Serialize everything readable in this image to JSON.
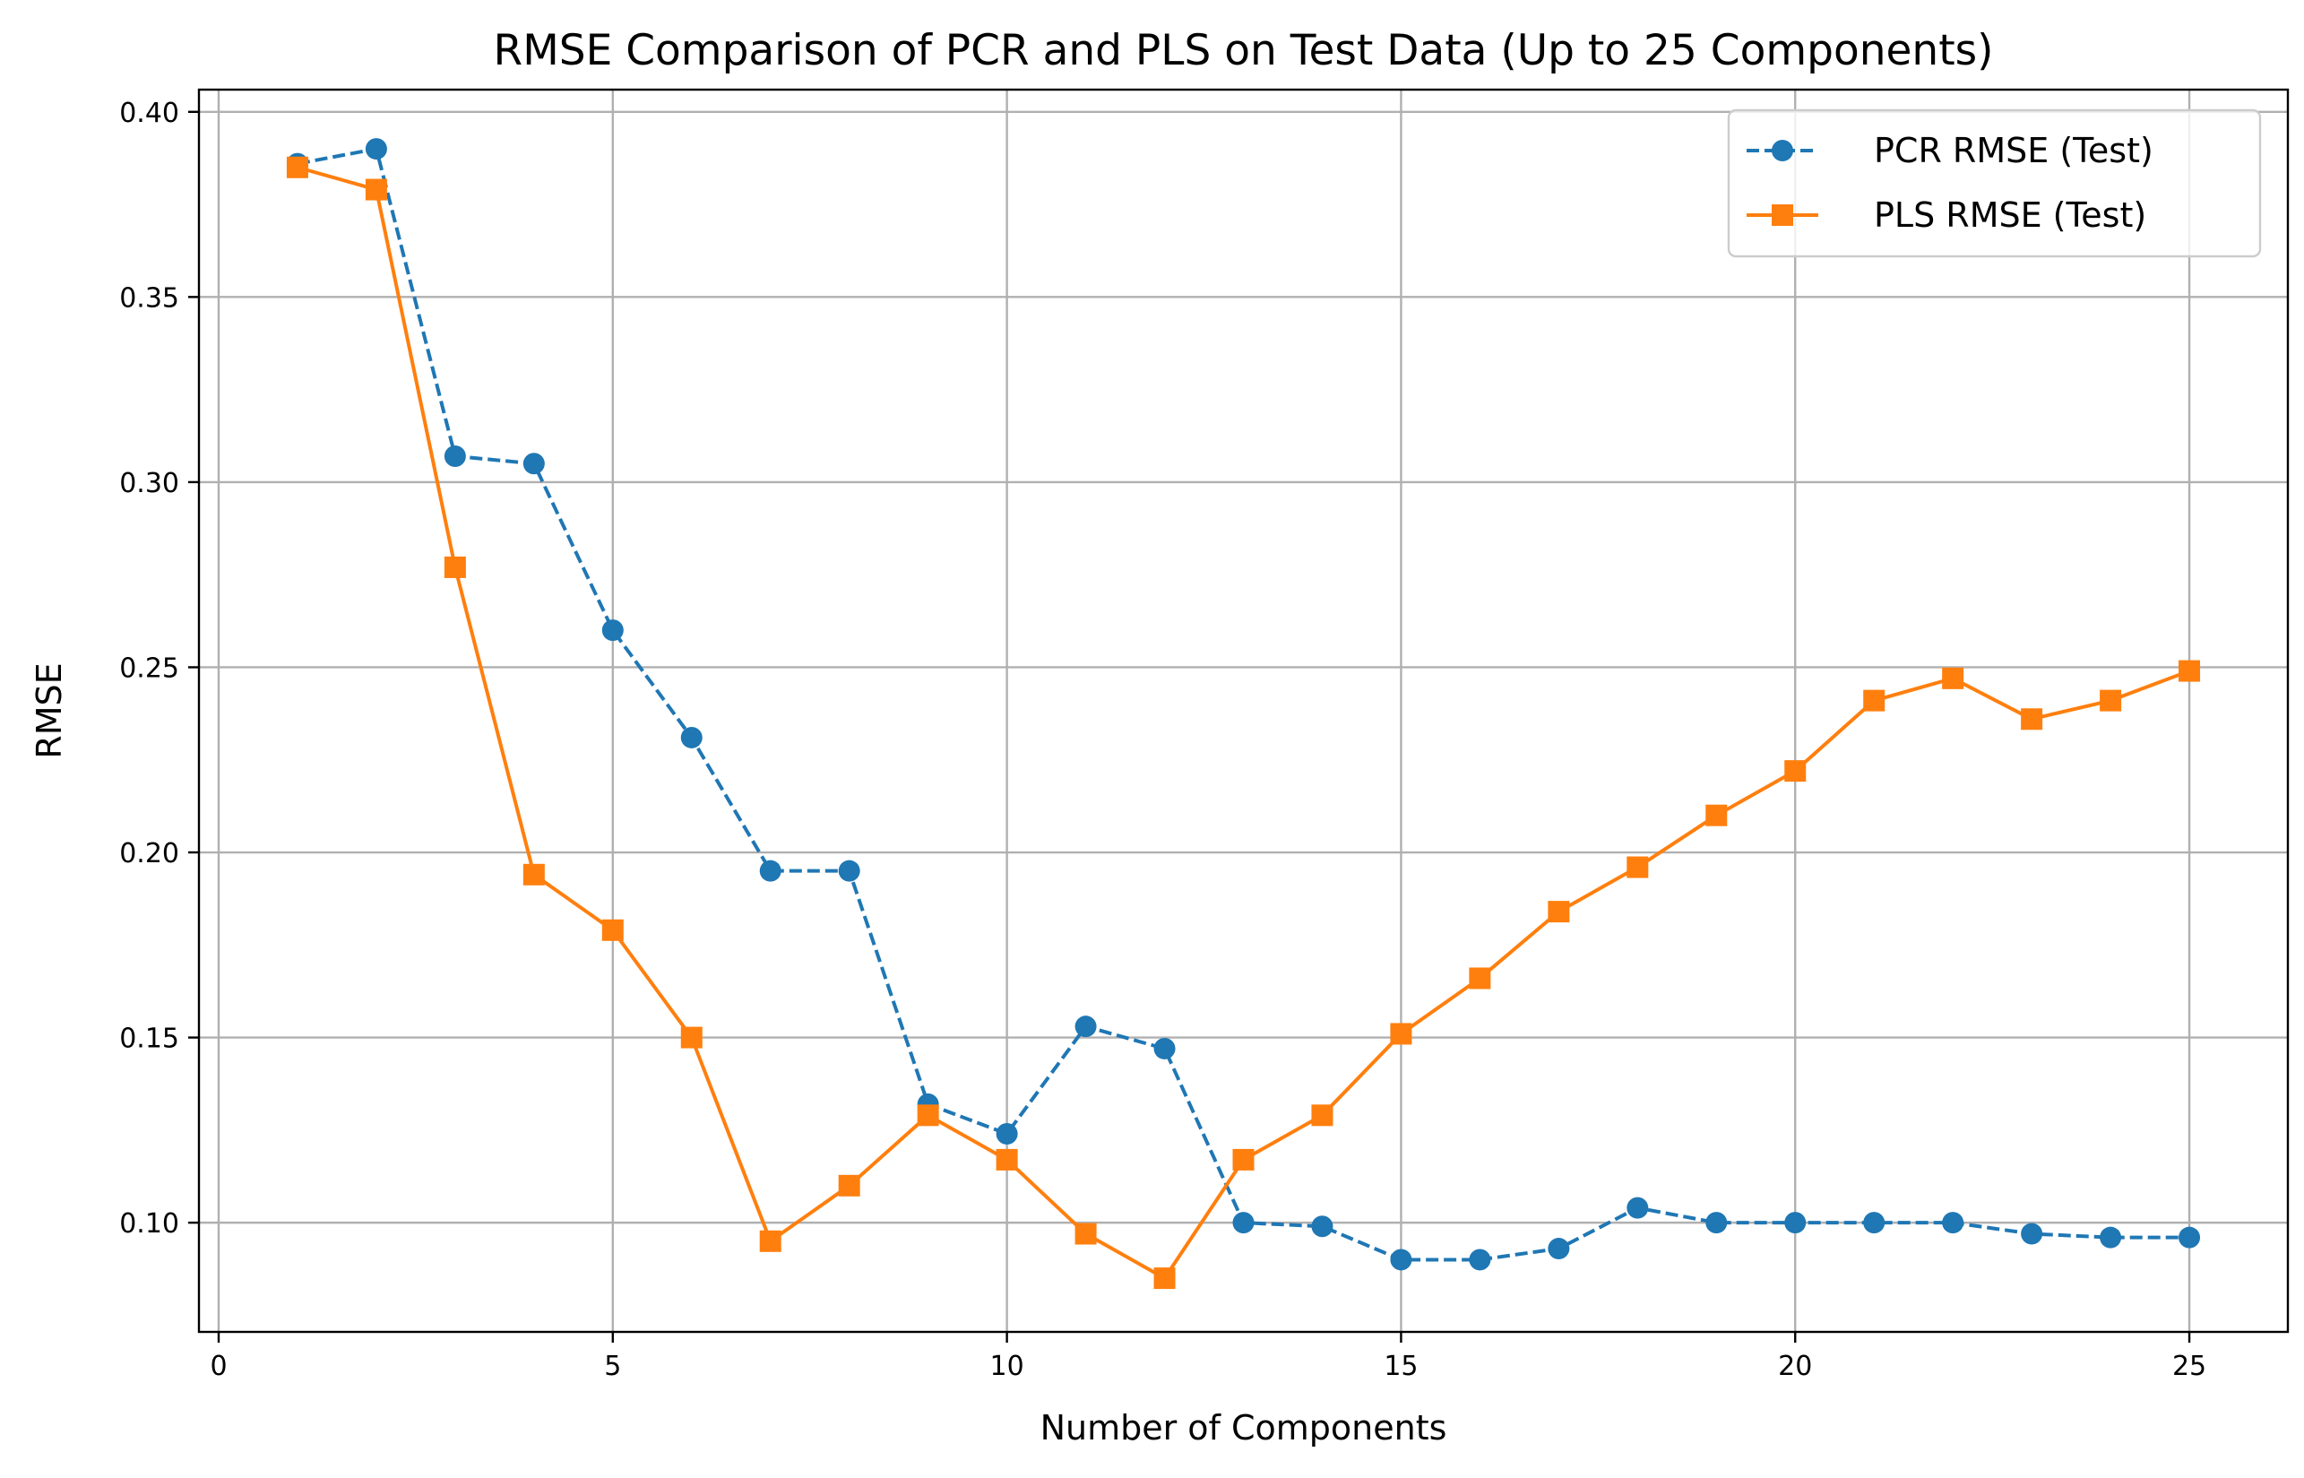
{
  "chart_data": {
    "type": "line",
    "title": "RMSE Comparison of PCR and PLS on Test Data (Up to 25 Components)",
    "xlabel": "Number of Components",
    "ylabel": "RMSE",
    "xlim": [
      -0.25,
      26.25
    ],
    "ylim": [
      0.0705,
      0.406
    ],
    "xticks": [
      0,
      5,
      10,
      15,
      20,
      25
    ],
    "xtick_labels": [
      "0",
      "5",
      "10",
      "15",
      "20",
      "25"
    ],
    "yticks": [
      0.1,
      0.15,
      0.2,
      0.25,
      0.3,
      0.35,
      0.4
    ],
    "ytick_labels": [
      "0.10",
      "0.15",
      "0.20",
      "0.25",
      "0.30",
      "0.35",
      "0.40"
    ],
    "grid": true,
    "legend_position": "top-right",
    "x": [
      1,
      2,
      3,
      4,
      5,
      6,
      7,
      8,
      9,
      10,
      11,
      12,
      13,
      14,
      15,
      16,
      17,
      18,
      19,
      20,
      21,
      22,
      23,
      24,
      25
    ],
    "series": [
      {
        "name": "PCR RMSE (Test)",
        "color": "#1f77b4",
        "line_style": "dashed",
        "marker": "circle",
        "values": [
          0.386,
          0.39,
          0.307,
          0.305,
          0.26,
          0.231,
          0.195,
          0.195,
          0.132,
          0.124,
          0.153,
          0.147,
          0.1,
          0.099,
          0.09,
          0.09,
          0.093,
          0.104,
          0.1,
          0.1,
          0.1,
          0.1,
          0.097,
          0.096,
          0.096
        ]
      },
      {
        "name": "PLS RMSE (Test)",
        "color": "#ff7f0e",
        "line_style": "solid",
        "marker": "square",
        "values": [
          0.385,
          0.379,
          0.277,
          0.194,
          0.179,
          0.15,
          0.095,
          0.11,
          0.129,
          0.117,
          0.097,
          0.085,
          0.117,
          0.129,
          0.151,
          0.166,
          0.184,
          0.196,
          0.21,
          0.222,
          0.241,
          0.247,
          0.236,
          0.241,
          0.249
        ]
      }
    ]
  }
}
